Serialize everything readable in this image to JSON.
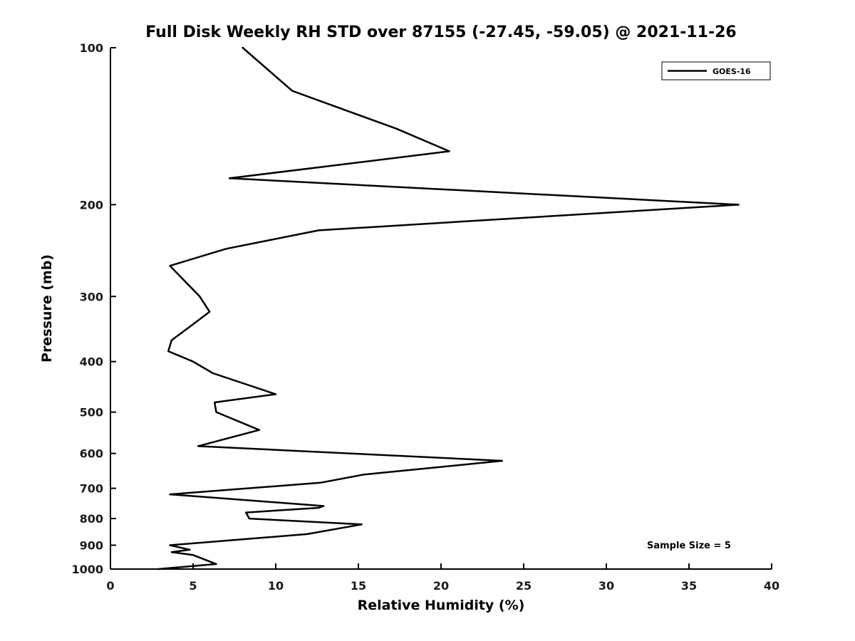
{
  "chart_data": {
    "type": "line",
    "title": "Full Disk Weekly RH STD over 87155 (-27.45, -59.05) @ 2021-11-26",
    "xlabel": "Relative Humidity (%)",
    "ylabel": "Pressure (mb)",
    "xlim": [
      0,
      40
    ],
    "x_ticks": [
      0,
      5,
      10,
      15,
      20,
      25,
      30,
      35,
      40
    ],
    "ylim": [
      100,
      1000
    ],
    "y_scale": "log",
    "y_axis_reversed": true,
    "y_ticks": [
      100,
      200,
      300,
      400,
      500,
      600,
      700,
      800,
      900,
      1000
    ],
    "grid": false,
    "legend": {
      "position": "top-right",
      "entries": [
        {
          "label": "GOES-16",
          "color": "#000000",
          "line_width": 2.5
        }
      ]
    },
    "annotation": "Sample Size = 5",
    "series": [
      {
        "name": "GOES-16",
        "color": "#000000",
        "points": [
          {
            "rh": 8.0,
            "pressure": 100
          },
          {
            "rh": 11.0,
            "pressure": 121
          },
          {
            "rh": 17.3,
            "pressure": 143
          },
          {
            "rh": 20.5,
            "pressure": 158
          },
          {
            "rh": 7.2,
            "pressure": 178
          },
          {
            "rh": 38.0,
            "pressure": 200
          },
          {
            "rh": 12.6,
            "pressure": 224
          },
          {
            "rh": 7.0,
            "pressure": 243
          },
          {
            "rh": 3.6,
            "pressure": 262
          },
          {
            "rh": 5.4,
            "pressure": 300
          },
          {
            "rh": 6.0,
            "pressure": 321
          },
          {
            "rh": 4.9,
            "pressure": 341
          },
          {
            "rh": 3.7,
            "pressure": 364
          },
          {
            "rh": 3.5,
            "pressure": 382
          },
          {
            "rh": 5.0,
            "pressure": 400
          },
          {
            "rh": 6.2,
            "pressure": 421
          },
          {
            "rh": 10.0,
            "pressure": 462
          },
          {
            "rh": 6.3,
            "pressure": 479
          },
          {
            "rh": 6.4,
            "pressure": 500
          },
          {
            "rh": 9.0,
            "pressure": 541
          },
          {
            "rh": 5.3,
            "pressure": 581
          },
          {
            "rh": 23.7,
            "pressure": 620
          },
          {
            "rh": 15.3,
            "pressure": 659
          },
          {
            "rh": 12.7,
            "pressure": 683
          },
          {
            "rh": 3.6,
            "pressure": 719
          },
          {
            "rh": 12.9,
            "pressure": 757
          },
          {
            "rh": 12.6,
            "pressure": 763
          },
          {
            "rh": 8.2,
            "pressure": 779
          },
          {
            "rh": 8.4,
            "pressure": 800
          },
          {
            "rh": 15.2,
            "pressure": 821
          },
          {
            "rh": 11.9,
            "pressure": 857
          },
          {
            "rh": 3.6,
            "pressure": 900
          },
          {
            "rh": 4.8,
            "pressure": 918
          },
          {
            "rh": 3.7,
            "pressure": 928
          },
          {
            "rh": 5.0,
            "pressure": 940
          },
          {
            "rh": 6.4,
            "pressure": 978
          },
          {
            "rh": 2.9,
            "pressure": 1000
          }
        ]
      }
    ],
    "colors": {
      "line": "#000000",
      "axis": "#000000",
      "background": "#ffffff"
    }
  }
}
